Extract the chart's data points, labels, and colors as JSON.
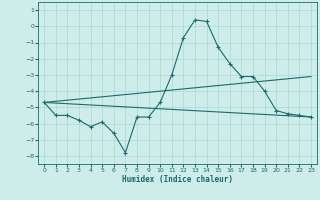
{
  "xlabel": "Humidex (Indice chaleur)",
  "xlim": [
    -0.5,
    23.5
  ],
  "ylim": [
    -8.5,
    1.5
  ],
  "yticks": [
    1,
    0,
    -1,
    -2,
    -3,
    -4,
    -5,
    -6,
    -7,
    -8
  ],
  "xticks": [
    0,
    1,
    2,
    3,
    4,
    5,
    6,
    7,
    8,
    9,
    10,
    11,
    12,
    13,
    14,
    15,
    16,
    17,
    18,
    19,
    20,
    21,
    22,
    23
  ],
  "bg_color": "#ceecea",
  "grid_color": "#a8d8d4",
  "line_color": "#1a6b6b",
  "line1_x": [
    0,
    1,
    2,
    3,
    4,
    5,
    6,
    7,
    8,
    9,
    10,
    11,
    12,
    13,
    14,
    15,
    16,
    17,
    18,
    19,
    20,
    21,
    22,
    23
  ],
  "line1_y": [
    -4.7,
    -5.5,
    -5.5,
    -5.8,
    -6.2,
    -5.9,
    -6.6,
    -7.8,
    -5.6,
    -5.6,
    -4.7,
    -3.0,
    -0.7,
    0.4,
    0.3,
    -1.3,
    -2.3,
    -3.1,
    -3.1,
    -4.0,
    -5.2,
    -5.4,
    -5.5,
    -5.6
  ],
  "line2_x": [
    0,
    23
  ],
  "line2_y": [
    -4.7,
    -3.1
  ],
  "line3_x": [
    0,
    23
  ],
  "line3_y": [
    -4.7,
    -5.6
  ]
}
